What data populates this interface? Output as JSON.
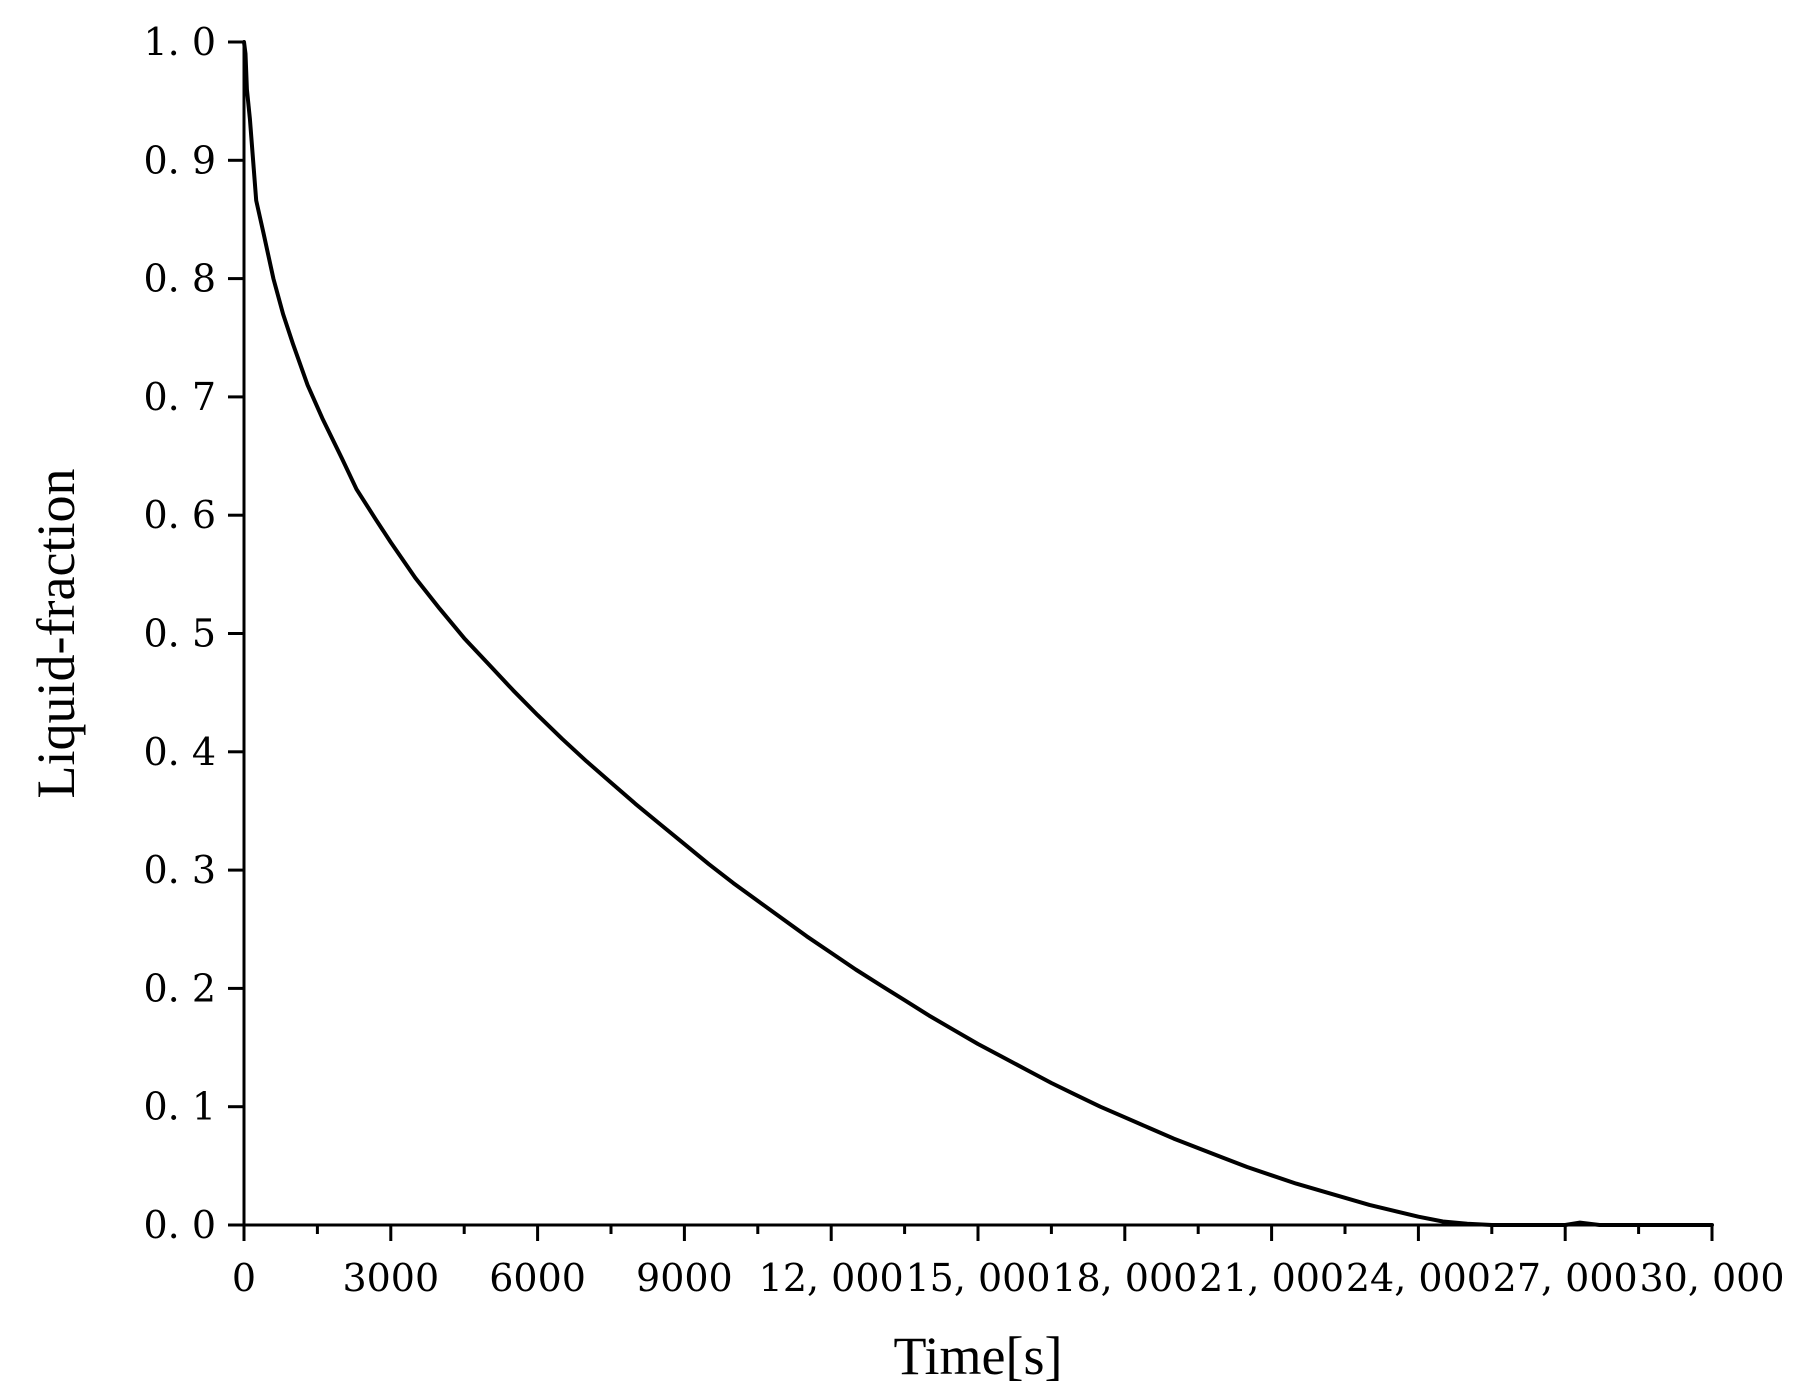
{
  "chart_data": {
    "type": "line",
    "xlabel": "Time[s]",
    "ylabel": "Liquid-fraction",
    "xlim": [
      0,
      30000
    ],
    "ylim": [
      0,
      1.0
    ],
    "x_ticks": [
      0,
      3000,
      6000,
      9000,
      12000,
      15000,
      18000,
      21000,
      24000,
      27000,
      30000
    ],
    "x_tick_labels": [
      "0",
      "3000",
      "6000",
      "9000",
      "12, 000",
      "15, 000",
      "18, 000",
      "21, 000",
      "24, 000",
      "27, 000",
      "30, 000"
    ],
    "y_ticks": [
      0,
      0.1,
      0.2,
      0.3,
      0.4,
      0.5,
      0.6,
      0.7,
      0.8,
      0.9,
      1.0
    ],
    "y_tick_labels": [
      "0. 0",
      "0. 1",
      "0. 2",
      "0. 3",
      "0. 4",
      "0. 5",
      "0. 6",
      "0. 7",
      "0. 8",
      "0. 9",
      "1. 0"
    ],
    "grid": false,
    "series": [
      {
        "color": "#000000",
        "x": [
          0,
          30,
          60,
          120,
          250,
          400,
          600,
          800,
          1000,
          1300,
          1600,
          2000,
          2300,
          2700,
          3000,
          3500,
          4000,
          4500,
          5000,
          5500,
          6000,
          6500,
          7000,
          7500,
          8000,
          8500,
          9000,
          9500,
          10000,
          10500,
          11000,
          11500,
          12000,
          12500,
          13000,
          13500,
          14000,
          14500,
          15000,
          15500,
          16000,
          16500,
          17000,
          17500,
          18000,
          18500,
          19000,
          19500,
          20000,
          20500,
          21000,
          21500,
          22000,
          22500,
          23000,
          23500,
          24000,
          24500,
          25000,
          25500,
          26000,
          26500,
          27000,
          27300,
          27700,
          28000,
          29000,
          30000
        ],
        "y": [
          1.0,
          0.99,
          0.96,
          0.935,
          0.866,
          0.838,
          0.8,
          0.77,
          0.745,
          0.71,
          0.682,
          0.648,
          0.622,
          0.596,
          0.577,
          0.547,
          0.521,
          0.496,
          0.474,
          0.452,
          0.431,
          0.411,
          0.392,
          0.374,
          0.356,
          0.339,
          0.322,
          0.305,
          0.289,
          0.274,
          0.259,
          0.244,
          0.23,
          0.216,
          0.203,
          0.19,
          0.177,
          0.165,
          0.153,
          0.142,
          0.131,
          0.12,
          0.11,
          0.1,
          0.091,
          0.082,
          0.073,
          0.065,
          0.057,
          0.049,
          0.042,
          0.035,
          0.029,
          0.023,
          0.017,
          0.012,
          0.007,
          0.003,
          0.001,
          0.0,
          0.0,
          0.0,
          0.0,
          0.002,
          0.0,
          0.0,
          0.0,
          0.0
        ]
      }
    ]
  }
}
